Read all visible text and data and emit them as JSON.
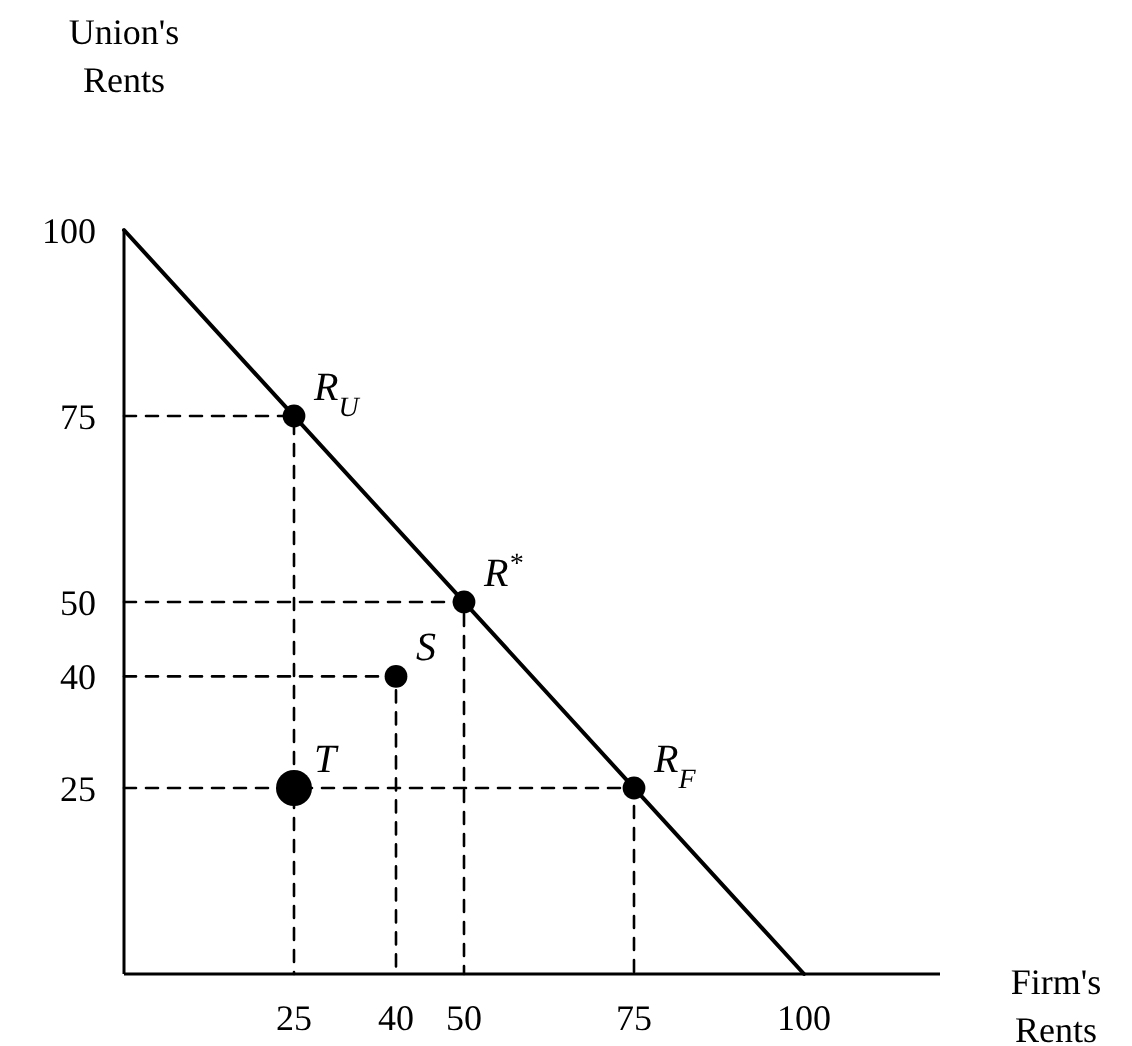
{
  "chart_data": {
    "type": "line",
    "xlabel": "Firm's\nRents",
    "ylabel": "Union's\nRents",
    "xlim": [
      0,
      120
    ],
    "ylim": [
      0,
      100
    ],
    "xticks": [
      25,
      40,
      50,
      75,
      100
    ],
    "yticks": [
      25,
      40,
      50,
      75,
      100
    ],
    "series": [
      {
        "x": [
          0,
          100
        ],
        "values": [
          100,
          0
        ],
        "color": "#000000",
        "line_style": "solid"
      },
      {
        "x": [
          0,
          25,
          25
        ],
        "values": [
          75,
          75,
          0
        ],
        "color": "#000000",
        "line_style": "dashed"
      },
      {
        "x": [
          0,
          50,
          50
        ],
        "values": [
          50,
          50,
          0
        ],
        "color": "#000000",
        "line_style": "dashed"
      },
      {
        "x": [
          0,
          40,
          40
        ],
        "values": [
          40,
          40,
          0
        ],
        "color": "#000000",
        "line_style": "dashed"
      },
      {
        "x": [
          0,
          75,
          75
        ],
        "values": [
          25,
          25,
          0
        ],
        "color": "#000000",
        "line_style": "dashed"
      },
      {
        "type": "bubble",
        "x": [
          25,
          50,
          75,
          40,
          25
        ],
        "values": [
          75,
          50,
          25,
          40,
          25
        ],
        "sizes": [
          0.4,
          0.4,
          0.4,
          0.4,
          1
        ],
        "color": "#000000"
      }
    ],
    "annotations": [
      {
        "text": "R$_{U}$",
        "x": 25,
        "y": 75
      },
      {
        "text": "R$^{*}$",
        "x": 50,
        "y": 50
      },
      {
        "text": "R$_{F}$",
        "x": 75,
        "y": 25
      },
      {
        "text": "S",
        "x": 40,
        "y": 40
      },
      {
        "text": "T",
        "x": 25,
        "y": 25
      }
    ]
  }
}
